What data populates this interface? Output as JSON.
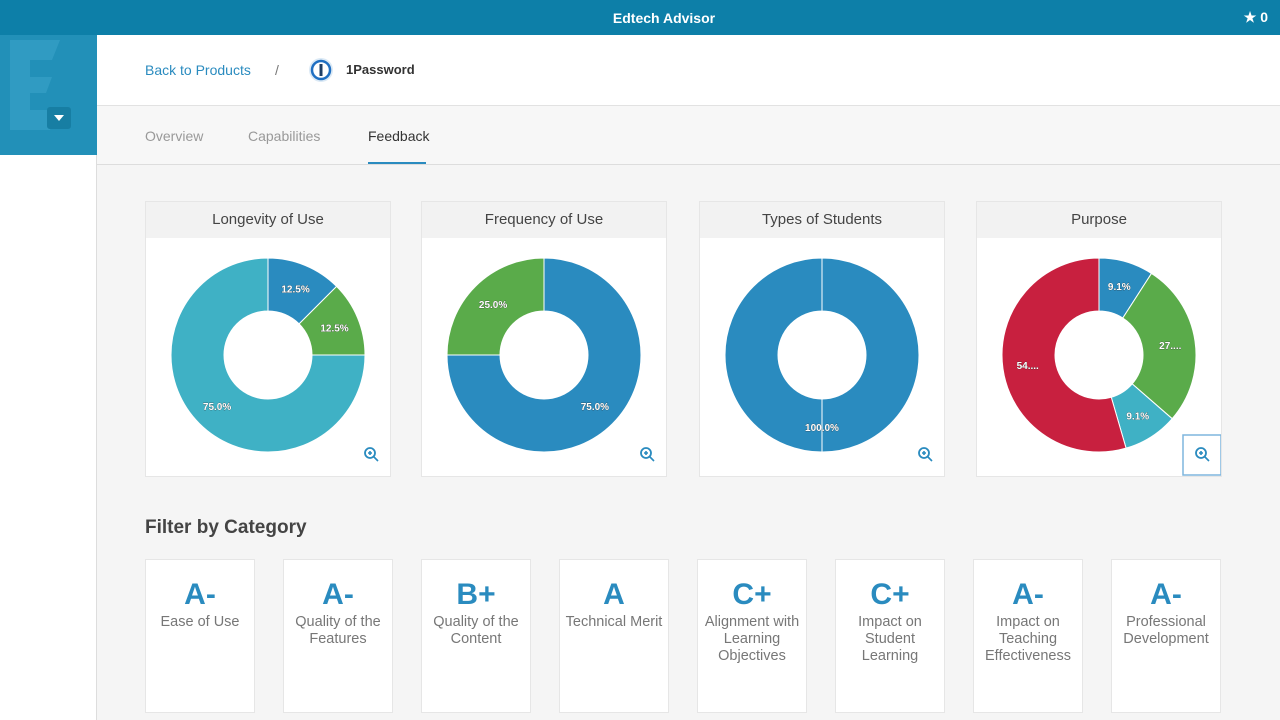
{
  "header": {
    "title": "Edtech Advisor",
    "star_count": 0
  },
  "breadcrumb": {
    "back": "Back to Products",
    "separator": "/",
    "product": "1Password"
  },
  "tabs": [
    "Overview",
    "Capabilities",
    "Feedback"
  ],
  "chart_data": [
    {
      "type": "pie",
      "title": "Longevity of Use",
      "values": [
        12.5,
        12.5,
        75
      ],
      "value_labels": [
        "12.5%",
        "12.5%",
        "75.0%"
      ],
      "colors": [
        "#2a8bbf",
        "#5aab4a",
        "#3fb1c5"
      ]
    },
    {
      "type": "pie",
      "title": "Frequency of Use",
      "values": [
        75,
        25
      ],
      "value_labels": [
        "75.0%",
        "25.0%"
      ],
      "colors": [
        "#2a8bbf",
        "#5aab4a"
      ]
    },
    {
      "type": "pie",
      "title": "Types of Students",
      "values": [
        100
      ],
      "value_labels": [
        "100.0%"
      ],
      "colors": [
        "#2a8bbf"
      ]
    },
    {
      "type": "pie",
      "title": "Purpose",
      "values": [
        9.1,
        27.3,
        9.1,
        54.5
      ],
      "value_labels": [
        "9.1%",
        "27....",
        "9.1%",
        "54...."
      ],
      "colors": [
        "#2a8bbf",
        "#5aab4a",
        "#3fb1c5",
        "#c8203f"
      ]
    }
  ],
  "filter": {
    "heading": "Filter by Category",
    "categories": [
      {
        "grade": "A-",
        "label": "Ease of Use"
      },
      {
        "grade": "A-",
        "label": "Quality of the Features"
      },
      {
        "grade": "B+",
        "label": "Quality of the Content"
      },
      {
        "grade": "A",
        "label": "Technical Merit"
      },
      {
        "grade": "C+",
        "label": "Alignment with Learning Objectives"
      },
      {
        "grade": "C+",
        "label": "Impact on Student Learning"
      },
      {
        "grade": "A-",
        "label": "Impact on Teaching Effectiveness"
      },
      {
        "grade": "A-",
        "label": "Professional Development"
      }
    ]
  }
}
